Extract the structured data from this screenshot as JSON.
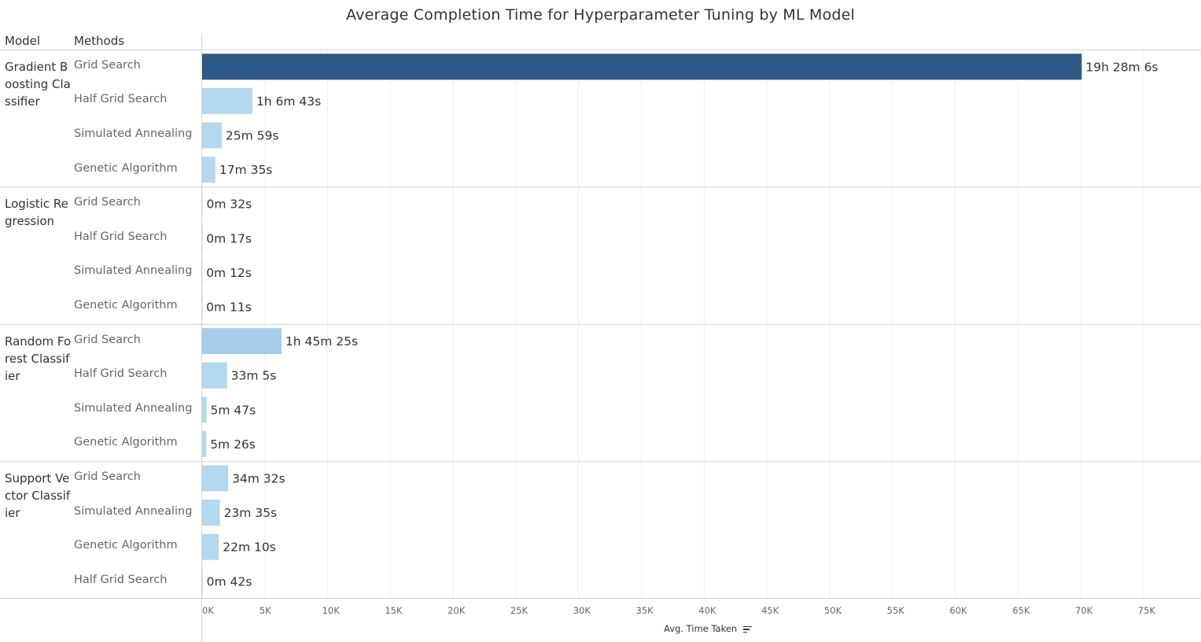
{
  "chart_data": {
    "type": "bar",
    "orientation": "horizontal",
    "title": "Average Completion Time for Hyperparameter Tuning by ML Model",
    "row_headers": [
      "Model",
      "Methods"
    ],
    "xlabel": "Avg. Time Taken",
    "xlim": [
      0,
      78000
    ],
    "xticks": [
      0,
      5000,
      10000,
      15000,
      20000,
      25000,
      30000,
      35000,
      40000,
      45000,
      50000,
      55000,
      60000,
      65000,
      70000,
      75000
    ],
    "xtick_labels": [
      "0K",
      "5K",
      "10K",
      "15K",
      "20K",
      "25K",
      "30K",
      "35K",
      "40K",
      "45K",
      "50K",
      "55K",
      "60K",
      "65K",
      "70K",
      "75K"
    ],
    "grid": true,
    "groups": [
      {
        "model": "Gradient Boosting Classifier",
        "rows": [
          {
            "method": "Grid Search",
            "value": 70086,
            "label": "19h 28m 6s"
          },
          {
            "method": "Half Grid Search",
            "value": 4003,
            "label": "1h 6m 43s"
          },
          {
            "method": "Simulated Annealing",
            "value": 1559,
            "label": "25m 59s"
          },
          {
            "method": "Genetic Algorithm",
            "value": 1055,
            "label": "17m 35s"
          }
        ]
      },
      {
        "model": "Logistic Regression",
        "rows": [
          {
            "method": "Grid Search",
            "value": 32,
            "label": "0m 32s"
          },
          {
            "method": "Half Grid Search",
            "value": 17,
            "label": "0m 17s"
          },
          {
            "method": "Simulated Annealing",
            "value": 12,
            "label": "0m 12s"
          },
          {
            "method": "Genetic Algorithm",
            "value": 11,
            "label": "0m 11s"
          }
        ]
      },
      {
        "model": "Random Forest Classifier",
        "rows": [
          {
            "method": "Grid Search",
            "value": 6325,
            "label": "1h 45m 25s"
          },
          {
            "method": "Half Grid Search",
            "value": 1985,
            "label": "33m 5s"
          },
          {
            "method": "Simulated Annealing",
            "value": 347,
            "label": "5m 47s"
          },
          {
            "method": "Genetic Algorithm",
            "value": 326,
            "label": "5m 26s"
          }
        ]
      },
      {
        "model": "Support Vector Classifier",
        "rows": [
          {
            "method": "Grid Search",
            "value": 2072,
            "label": "34m 32s"
          },
          {
            "method": "Simulated Annealing",
            "value": 1415,
            "label": "23m 35s"
          },
          {
            "method": "Genetic Algorithm",
            "value": 1330,
            "label": "22m 10s"
          },
          {
            "method": "Half Grid Search",
            "value": 42,
            "label": "0m 42s"
          }
        ]
      }
    ],
    "colors": {
      "max_bar": "#2c5985",
      "low_bar": "#b4d8ee",
      "mid_bar": "#a3cde9",
      "divider": "#d4d4d4",
      "grid": "#efefef"
    }
  }
}
